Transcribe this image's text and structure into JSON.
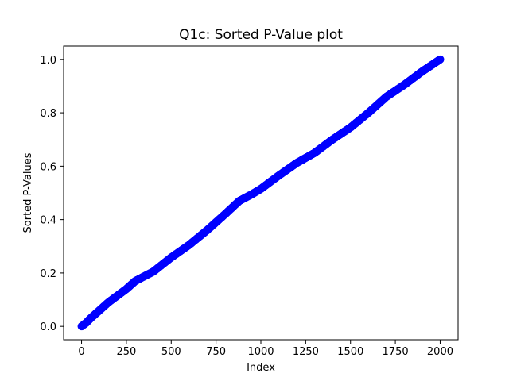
{
  "chart_data": {
    "type": "scatter",
    "title": "Q1c: Sorted P-Value plot",
    "xlabel": "Index",
    "ylabel": "Sorted P-Values",
    "xlim": [
      -100,
      2100
    ],
    "ylim": [
      -0.05,
      1.05
    ],
    "x_ticks": [
      0,
      250,
      500,
      750,
      1000,
      1250,
      1500,
      1750,
      2000
    ],
    "x_tick_labels": [
      "0",
      "250",
      "500",
      "750",
      "1000",
      "1250",
      "1500",
      "1750",
      "2000"
    ],
    "y_ticks": [
      0.0,
      0.2,
      0.4,
      0.6,
      0.8,
      1.0
    ],
    "y_tick_labels": [
      "0.0",
      "0.2",
      "0.4",
      "0.6",
      "0.8",
      "1.0"
    ],
    "grid": false,
    "marker_color": "#0000ff",
    "n_points": 2000,
    "curve_anchors": {
      "x": [
        0,
        25,
        50,
        100,
        150,
        200,
        250,
        300,
        400,
        500,
        600,
        700,
        800,
        880,
        950,
        1000,
        1100,
        1200,
        1300,
        1400,
        1500,
        1600,
        1700,
        1800,
        1900,
        2000
      ],
      "y": [
        0.0,
        0.013,
        0.03,
        0.06,
        0.09,
        0.115,
        0.14,
        0.17,
        0.205,
        0.258,
        0.305,
        0.36,
        0.42,
        0.47,
        0.495,
        0.515,
        0.565,
        0.612,
        0.65,
        0.7,
        0.745,
        0.8,
        0.86,
        0.905,
        0.955,
        1.0
      ]
    }
  }
}
